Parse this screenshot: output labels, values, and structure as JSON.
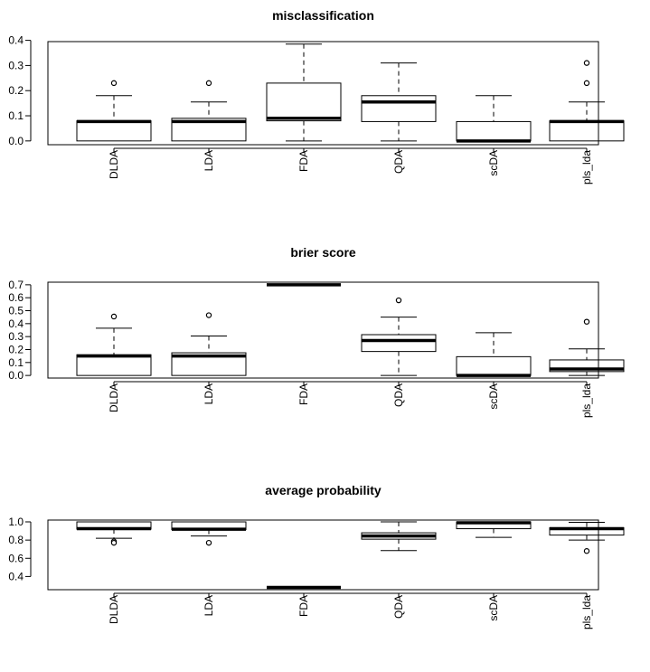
{
  "chart_data": [
    {
      "type": "boxplot",
      "title": "misclassification",
      "categories": [
        "DLDA",
        "LDA",
        "FDA",
        "QDA",
        "scDA",
        "pls_lda"
      ],
      "yticks": [
        0.0,
        0.1,
        0.2,
        0.3,
        0.4
      ],
      "ytick_labels": [
        "0.0",
        "0.1",
        "0.2",
        "0.3",
        "0.4"
      ],
      "ylim": [
        -0.015,
        0.395
      ],
      "boxes": [
        {
          "name": "DLDA",
          "min": 0.0,
          "q1": 0.0,
          "median": 0.077,
          "q3": 0.08,
          "max": 0.18,
          "outliers": [
            0.23
          ]
        },
        {
          "name": "LDA",
          "min": 0.0,
          "q1": 0.0,
          "median": 0.077,
          "q3": 0.09,
          "max": 0.155,
          "outliers": [
            0.23
          ]
        },
        {
          "name": "FDA",
          "min": 0.0,
          "q1": 0.08,
          "median": 0.09,
          "q3": 0.23,
          "max": 0.385,
          "outliers": []
        },
        {
          "name": "QDA",
          "min": 0.0,
          "q1": 0.077,
          "median": 0.155,
          "q3": 0.18,
          "max": 0.31,
          "outliers": []
        },
        {
          "name": "scDA",
          "min": 0.0,
          "q1": 0.0,
          "median": 0.0,
          "q3": 0.077,
          "max": 0.18,
          "outliers": []
        },
        {
          "name": "pls_lda",
          "min": 0.0,
          "q1": 0.0,
          "median": 0.077,
          "q3": 0.08,
          "max": 0.155,
          "outliers": [
            0.23,
            0.31
          ]
        }
      ]
    },
    {
      "type": "boxplot",
      "title": "brier score",
      "categories": [
        "DLDA",
        "LDA",
        "FDA",
        "QDA",
        "scDA",
        "pls_lda"
      ],
      "yticks": [
        0.0,
        0.1,
        0.2,
        0.3,
        0.4,
        0.5,
        0.6,
        0.7
      ],
      "ytick_labels": [
        "0.0",
        "0.1",
        "0.2",
        "0.3",
        "0.4",
        "0.5",
        "0.6",
        "0.7"
      ],
      "ylim": [
        -0.02,
        0.72
      ],
      "boxes": [
        {
          "name": "DLDA",
          "min": 0.0,
          "q1": 0.0,
          "median": 0.15,
          "q3": 0.16,
          "max": 0.365,
          "outliers": [
            0.455
          ]
        },
        {
          "name": "LDA",
          "min": 0.0,
          "q1": 0.0,
          "median": 0.15,
          "q3": 0.175,
          "max": 0.305,
          "outliers": [
            0.465
          ]
        },
        {
          "name": "FDA",
          "min": 0.7,
          "q1": 0.7,
          "median": 0.7,
          "q3": 0.7,
          "max": 0.7,
          "outliers": []
        },
        {
          "name": "QDA",
          "min": 0.0,
          "q1": 0.185,
          "median": 0.27,
          "q3": 0.315,
          "max": 0.45,
          "outliers": [
            0.58
          ]
        },
        {
          "name": "scDA",
          "min": 0.0,
          "q1": 0.0,
          "median": 0.0,
          "q3": 0.145,
          "max": 0.33,
          "outliers": []
        },
        {
          "name": "pls_lda",
          "min": 0.0,
          "q1": 0.03,
          "median": 0.05,
          "q3": 0.12,
          "max": 0.205,
          "outliers": [
            0.415
          ]
        }
      ]
    },
    {
      "type": "boxplot",
      "title": "average probability",
      "categories": [
        "DLDA",
        "LDA",
        "FDA",
        "QDA",
        "scDA",
        "pls_lda"
      ],
      "yticks": [
        0.4,
        0.6,
        0.8,
        1.0
      ],
      "ytick_labels": [
        "0.4",
        "0.6",
        "0.8",
        "1.0"
      ],
      "ylim": [
        0.255,
        1.02
      ],
      "boxes": [
        {
          "name": "DLDA",
          "min": 0.82,
          "q1": 0.92,
          "median": 0.925,
          "q3": 1.0,
          "max": 1.0,
          "outliers": [
            0.785,
            0.77
          ]
        },
        {
          "name": "LDA",
          "min": 0.845,
          "q1": 0.915,
          "median": 0.92,
          "q3": 1.0,
          "max": 1.0,
          "outliers": [
            0.77
          ]
        },
        {
          "name": "FDA",
          "min": 0.28,
          "q1": 0.28,
          "median": 0.28,
          "q3": 0.28,
          "max": 0.28,
          "outliers": []
        },
        {
          "name": "QDA",
          "min": 0.685,
          "q1": 0.81,
          "median": 0.845,
          "q3": 0.88,
          "max": 1.0,
          "outliers": []
        },
        {
          "name": "scDA",
          "min": 0.83,
          "q1": 0.925,
          "median": 0.99,
          "q3": 1.0,
          "max": 1.0,
          "outliers": []
        },
        {
          "name": "pls_lda",
          "min": 0.8,
          "q1": 0.855,
          "median": 0.925,
          "q3": 0.935,
          "max": 0.995,
          "outliers": [
            0.68
          ]
        }
      ]
    }
  ]
}
